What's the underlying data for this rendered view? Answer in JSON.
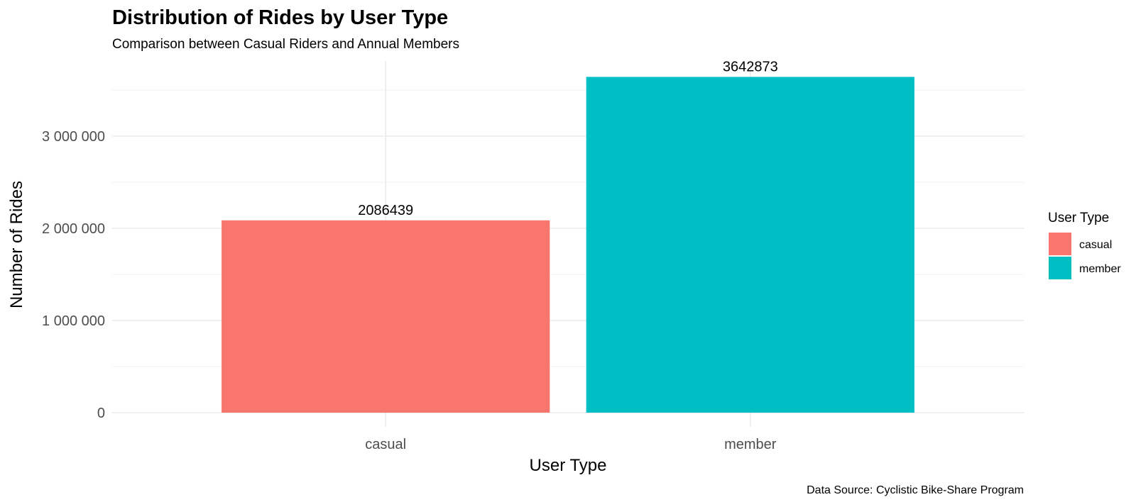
{
  "chart_data": {
    "type": "bar",
    "title": "Distribution of Rides by User Type",
    "subtitle": "Comparison between Casual Riders and Annual Members",
    "xlabel": "User Type",
    "ylabel": "Number of Rides",
    "caption": "Data Source: Cyclistic Bike-Share Program",
    "categories": [
      "casual",
      "member"
    ],
    "values": [
      2086439,
      3642873
    ],
    "value_labels": [
      "2086439",
      "3642873"
    ],
    "colors": [
      "#F8766D",
      "#00BFC4"
    ],
    "ylim": [
      0,
      3800000
    ],
    "yticks": [
      0,
      1000000,
      2000000,
      3000000
    ],
    "ytick_labels": [
      "0",
      "1 000 000",
      "2 000 000",
      "3 000 000"
    ],
    "grid": true,
    "legend": {
      "title": "User Type",
      "position": "right",
      "entries": [
        "casual",
        "member"
      ]
    }
  }
}
